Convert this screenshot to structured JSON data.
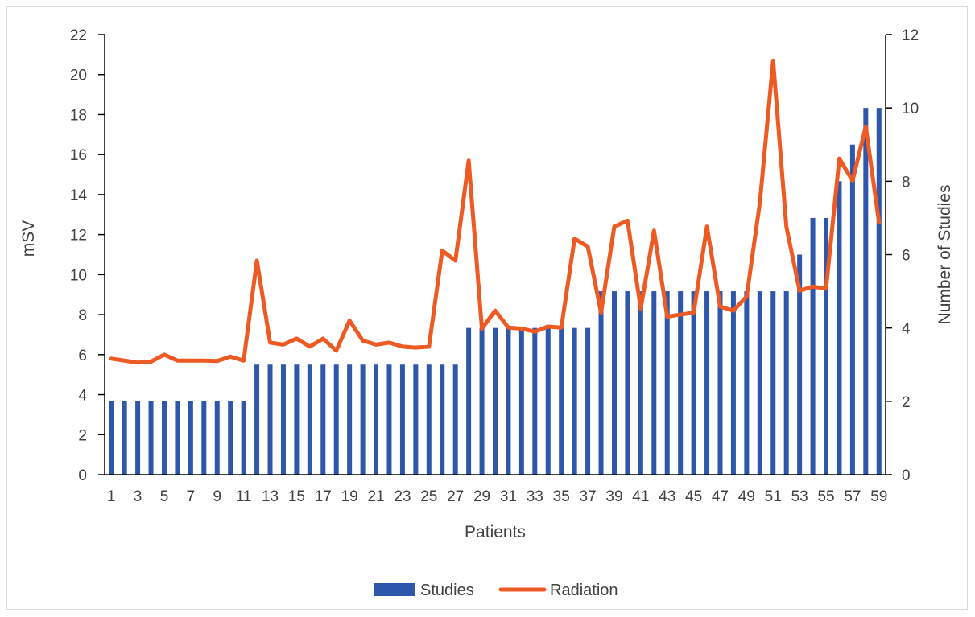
{
  "chart_data": {
    "type": "bar",
    "x_label": "Patients",
    "y_left_label": "mSV",
    "y_right_label": "Number of Studies",
    "y_left_range": [
      0,
      22
    ],
    "y_left_ticks": [
      0,
      2,
      4,
      6,
      8,
      10,
      12,
      14,
      16,
      18,
      20,
      22
    ],
    "y_right_range": [
      0,
      12
    ],
    "y_right_ticks": [
      0,
      2,
      4,
      6,
      8,
      10,
      12
    ],
    "x_tick_labels": [
      "1",
      "3",
      "5",
      "7",
      "9",
      "11",
      "13",
      "15",
      "17",
      "19",
      "21",
      "23",
      "25",
      "27",
      "29",
      "31",
      "33",
      "35",
      "37",
      "39",
      "41",
      "43",
      "45",
      "47",
      "49",
      "51",
      "53",
      "55",
      "57",
      "59"
    ],
    "categories": [
      1,
      2,
      3,
      4,
      5,
      6,
      7,
      8,
      9,
      10,
      11,
      12,
      13,
      14,
      15,
      16,
      17,
      18,
      19,
      20,
      21,
      22,
      23,
      24,
      25,
      26,
      27,
      28,
      29,
      30,
      31,
      32,
      33,
      34,
      35,
      36,
      37,
      38,
      39,
      40,
      41,
      42,
      43,
      44,
      45,
      46,
      47,
      48,
      49,
      50,
      51,
      52,
      53,
      54,
      55,
      56,
      57,
      58,
      59
    ],
    "gridlines": false,
    "legend_position": "bottom",
    "series": [
      {
        "name": "Studies",
        "kind": "bar",
        "axis": "right",
        "color": "#2E56AA",
        "values": [
          2,
          2,
          2,
          2,
          2,
          2,
          2,
          2,
          2,
          2,
          2,
          3,
          3,
          3,
          3,
          3,
          3,
          3,
          3,
          3,
          3,
          3,
          3,
          3,
          3,
          3,
          3,
          4,
          4,
          4,
          4,
          4,
          4,
          4,
          4,
          4,
          4,
          5,
          5,
          5,
          5,
          5,
          5,
          5,
          5,
          5,
          5,
          5,
          5,
          5,
          5,
          5,
          6,
          7,
          7,
          8,
          9,
          10,
          10
        ]
      },
      {
        "name": "Radiation",
        "kind": "line",
        "axis": "left",
        "color": "#EE5A24",
        "values": [
          5.8,
          5.7,
          5.6,
          5.65,
          6.0,
          5.7,
          5.7,
          5.7,
          5.68,
          5.9,
          5.7,
          10.7,
          6.6,
          6.5,
          6.8,
          6.4,
          6.8,
          6.2,
          7.7,
          6.7,
          6.5,
          6.6,
          6.4,
          6.35,
          6.4,
          11.2,
          10.7,
          15.7,
          7.3,
          8.2,
          7.35,
          7.3,
          7.15,
          7.4,
          7.35,
          11.8,
          11.4,
          8.1,
          12.4,
          12.7,
          8.3,
          12.2,
          7.9,
          8.0,
          8.1,
          12.4,
          8.4,
          8.2,
          8.9,
          13.6,
          20.7,
          12.4,
          9.2,
          9.4,
          9.3,
          15.8,
          14.7,
          17.4,
          12.6
        ]
      }
    ]
  }
}
